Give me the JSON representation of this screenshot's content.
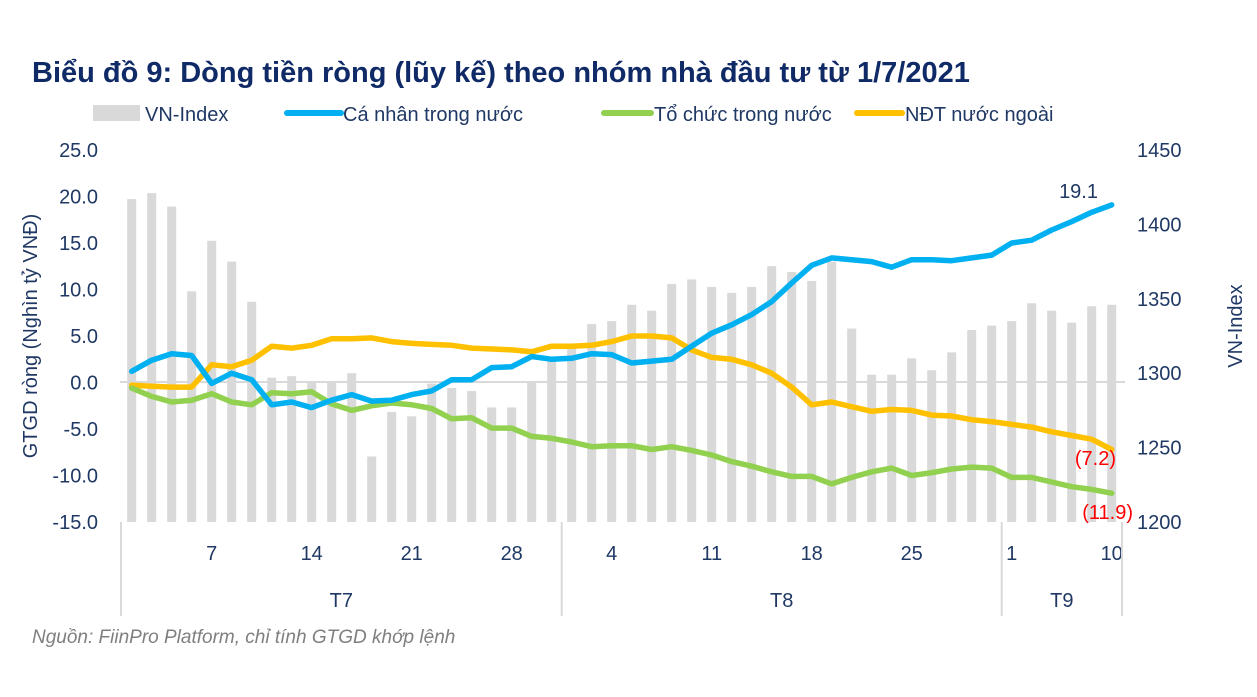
{
  "title": "Biểu đồ 9: Dòng tiền ròng (lũy kế) theo nhóm nhà đầu tư từ 1/7/2021",
  "source": "Nguồn: FiinPro Platform, chỉ tính GTGD khớp lệnh",
  "colors": {
    "bars": "#d9d9d9",
    "individual": "#00b0f0",
    "institution": "#92d050",
    "foreign": "#ffc000",
    "text": "#1f3864",
    "negative_label": "#ff0000"
  },
  "chart_data": {
    "type": "bar+line",
    "title": "Biểu đồ 9: Dòng tiền ròng (lũy kế) theo nhóm nhà đầu tư từ 1/7/2021",
    "ylabel": "GTGD ròng (Nghìn tỷ VNĐ)",
    "y2label": "VN-Index",
    "ylim": [
      -15,
      25
    ],
    "y2lim": [
      1200,
      1450
    ],
    "yticks": [
      "25.0",
      "20.0",
      "15.0",
      "10.0",
      "5.0",
      "0.0",
      "-5.0",
      "-10.0",
      "-15.0"
    ],
    "y2ticks": [
      "1450",
      "1400",
      "1350",
      "1300",
      "1250",
      "1200"
    ],
    "legend_position": "top",
    "x_tick_labels": [
      {
        "index": 4,
        "label": "7"
      },
      {
        "index": 9,
        "label": "14"
      },
      {
        "index": 14,
        "label": "21"
      },
      {
        "index": 19,
        "label": "28"
      },
      {
        "index": 24,
        "label": "4"
      },
      {
        "index": 29,
        "label": "11"
      },
      {
        "index": 34,
        "label": "18"
      },
      {
        "index": 39,
        "label": "25"
      },
      {
        "index": 44,
        "label": "1"
      },
      {
        "index": 49,
        "label": "10"
      }
    ],
    "months": [
      {
        "label": "T7",
        "start": 0,
        "end": 21
      },
      {
        "label": "T8",
        "start": 22,
        "end": 43
      },
      {
        "label": "T9",
        "start": 44,
        "end": 49
      }
    ],
    "legend": [
      "VN-Index",
      "Cá nhân trong nước",
      "Tổ chức trong nước",
      "NĐT nước ngoài"
    ],
    "series": [
      {
        "name": "VN-Index",
        "type": "bar",
        "axis": "right",
        "values": [
          1417,
          1421,
          1412,
          1355,
          1389,
          1375,
          1348,
          1297,
          1298,
          1294,
          1294,
          1300,
          1244,
          1274,
          1271,
          1293,
          1290,
          1288,
          1277,
          1277,
          1294,
          1308,
          1320,
          1333,
          1335,
          1346,
          1342,
          1360,
          1363,
          1358,
          1354,
          1358,
          1372,
          1368,
          1362,
          1375,
          1330,
          1299,
          1299,
          1310,
          1302,
          1314,
          1329,
          1332,
          1335,
          1347,
          1342,
          1334,
          1345,
          1346
        ]
      },
      {
        "name": "Cá nhân trong nước",
        "type": "line",
        "axis": "left",
        "values": [
          1.2,
          2.4,
          3.1,
          2.9,
          -0.1,
          1.0,
          0.3,
          -2.4,
          -2.1,
          -2.7,
          -1.9,
          -1.3,
          -2.0,
          -1.9,
          -1.3,
          -0.9,
          0.3,
          0.3,
          1.6,
          1.7,
          2.8,
          2.5,
          2.6,
          3.1,
          3.0,
          2.1,
          2.3,
          2.5,
          3.9,
          5.3,
          6.2,
          7.3,
          8.7,
          10.7,
          12.6,
          13.4,
          13.2,
          13.0,
          12.4,
          13.2,
          13.2,
          13.1,
          13.4,
          13.7,
          15.0,
          15.3,
          16.4,
          17.3,
          18.3,
          19.1
        ]
      },
      {
        "name": "Tổ chức trong nước",
        "type": "line",
        "axis": "left",
        "values": [
          -0.6,
          -1.5,
          -2.1,
          -1.9,
          -1.2,
          -2.1,
          -2.4,
          -1.1,
          -1.2,
          -1.0,
          -2.3,
          -3.0,
          -2.5,
          -2.2,
          -2.4,
          -2.8,
          -3.9,
          -3.8,
          -4.9,
          -4.9,
          -5.8,
          -6.0,
          -6.4,
          -6.9,
          -6.8,
          -6.8,
          -7.2,
          -6.9,
          -7.3,
          -7.8,
          -8.5,
          -9.0,
          -9.6,
          -10.1,
          -10.1,
          -10.9,
          -10.2,
          -9.6,
          -9.2,
          -10.0,
          -9.7,
          -9.3,
          -9.1,
          -9.2,
          -10.2,
          -10.2,
          -10.7,
          -11.2,
          -11.5,
          -11.9
        ]
      },
      {
        "name": "NĐT nước ngoài",
        "type": "line",
        "axis": "left",
        "values": [
          -0.3,
          -0.4,
          -0.5,
          -0.5,
          1.9,
          1.7,
          2.4,
          3.9,
          3.7,
          4.0,
          4.7,
          4.7,
          4.8,
          4.4,
          4.2,
          4.1,
          4.0,
          3.7,
          3.6,
          3.5,
          3.3,
          3.9,
          3.9,
          4.0,
          4.4,
          5.0,
          5.0,
          4.8,
          3.5,
          2.7,
          2.5,
          1.9,
          1.0,
          -0.5,
          -2.4,
          -2.1,
          -2.6,
          -3.1,
          -2.9,
          -3.0,
          -3.5,
          -3.6,
          -4.0,
          -4.2,
          -4.5,
          -4.8,
          -5.3,
          -5.7,
          -6.1,
          -7.2
        ]
      }
    ],
    "annotations": [
      {
        "series": "Cá nhân trong nước",
        "index": 49,
        "text": "19.1"
      },
      {
        "series": "NĐT nước ngoài",
        "index": 49,
        "text": "(7.2)"
      },
      {
        "series": "Tổ chức trong nước",
        "index": 49,
        "text": "(11.9)"
      }
    ]
  }
}
